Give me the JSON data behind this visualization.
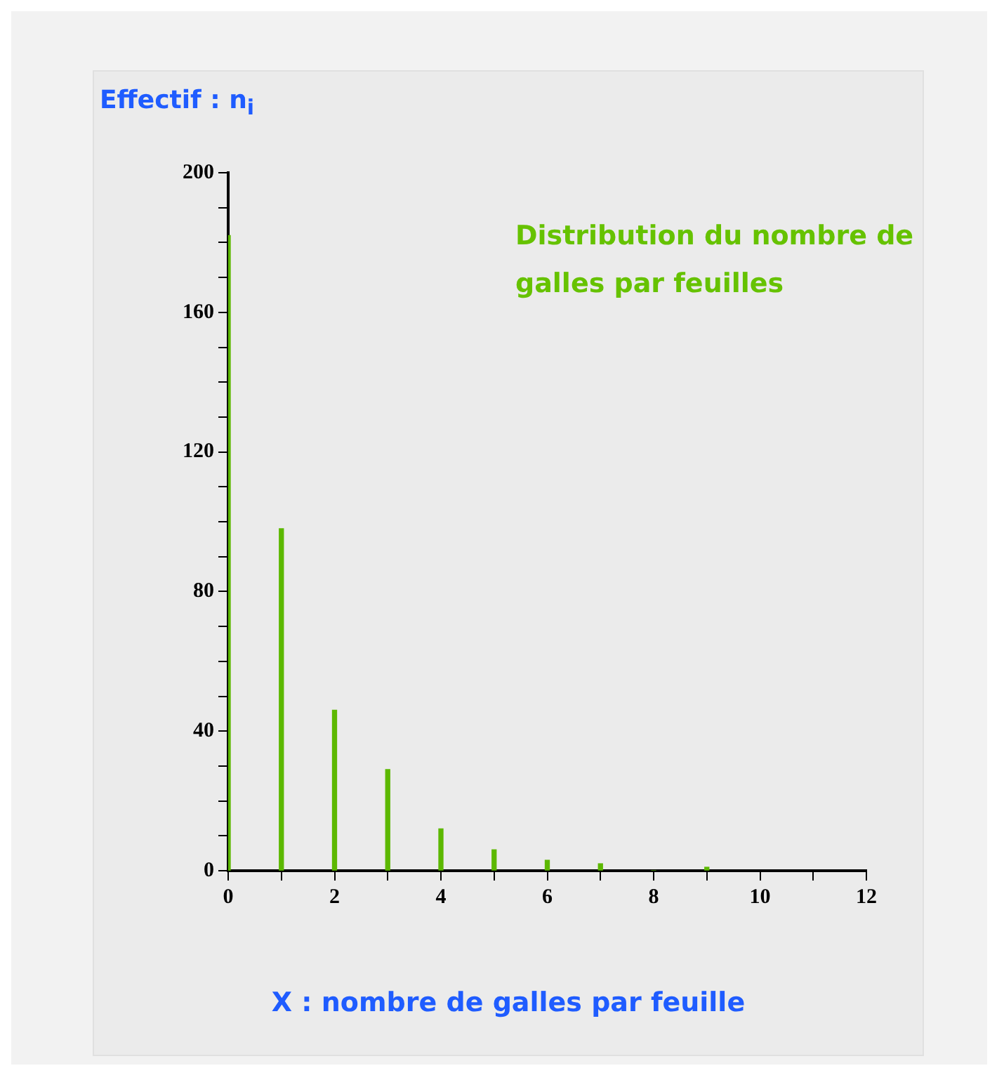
{
  "chart_data": {
    "type": "bar",
    "ylabel": "Effectif : n$_{i}$",
    "xlabel": "X : nombre de galles par feuille",
    "annotations": [
      "Distribution du nombre de galles par feuilles"
    ],
    "x": [
      0,
      1,
      2,
      3,
      4,
      5,
      6,
      7,
      8,
      9
    ],
    "values": [
      182,
      98,
      46,
      29,
      12,
      6,
      3,
      2,
      0,
      1
    ],
    "color": "#5cb800",
    "xlim": [
      0,
      12
    ],
    "xticks": [
      0,
      {
        "value": 1,
        "label": null
      },
      2,
      {
        "value": 3,
        "label": null
      },
      4,
      {
        "value": 5,
        "label": null
      },
      6,
      {
        "value": 7,
        "label": null
      },
      8,
      {
        "value": 9,
        "label": null
      },
      10,
      {
        "value": 11,
        "label": null
      },
      12
    ],
    "ylim": [
      0,
      200
    ],
    "yticks": [
      0,
      {
        "value": 10,
        "label": null
      },
      {
        "value": 20,
        "label": null
      },
      {
        "value": 30,
        "label": null
      },
      40,
      {
        "value": 50,
        "label": null
      },
      {
        "value": 60,
        "label": null
      },
      {
        "value": 70,
        "label": null
      },
      80,
      {
        "value": 90,
        "label": null
      },
      {
        "value": 100,
        "label": null
      },
      {
        "value": 110,
        "label": null
      },
      120,
      {
        "value": 130,
        "label": null
      },
      {
        "value": 140,
        "label": null
      },
      {
        "value": 150,
        "label": null
      },
      160,
      {
        "value": 170,
        "label": null
      },
      {
        "value": 180,
        "label": null
      },
      {
        "value": 190,
        "label": null
      },
      200
    ],
    "grid": false,
    "legend": false
  }
}
